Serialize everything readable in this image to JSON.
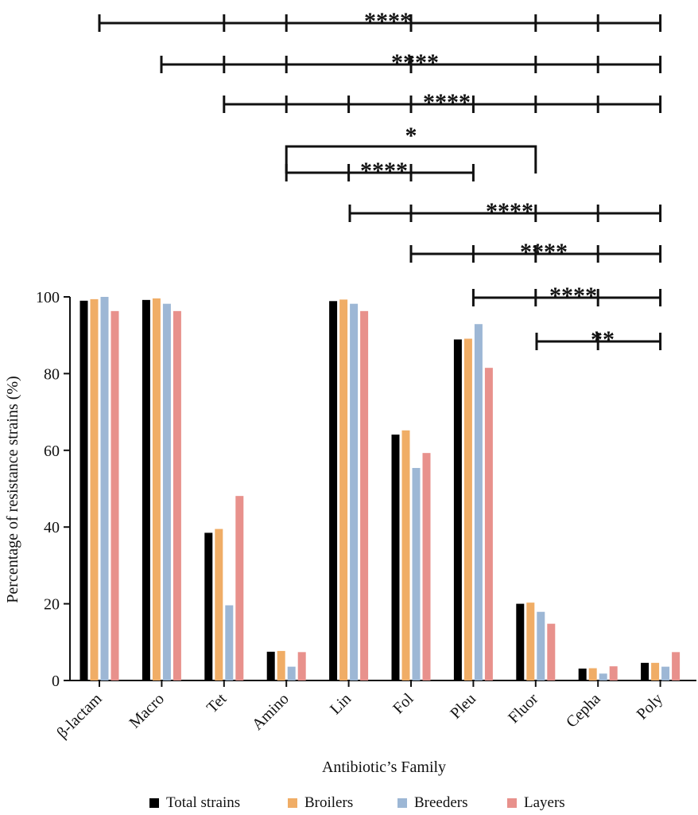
{
  "chart_data": {
    "type": "bar",
    "title": "",
    "xlabel": "Antibiotic’s Family",
    "ylabel": "Percentage of resistance strains (%)",
    "ylim": [
      0,
      100
    ],
    "yticks": [
      0,
      20,
      40,
      60,
      80,
      100
    ],
    "categories": [
      "β-lactam",
      "Macro",
      "Tet",
      "Amino",
      "Lin",
      "Fol",
      "Pleu",
      "Fluor",
      "Cepha",
      "Poly"
    ],
    "series": [
      {
        "name": "Total strains",
        "color": "#000000",
        "values": [
          99,
          99.2,
          38.5,
          7.5,
          98.9,
          64.1,
          88.9,
          20.0,
          3.1,
          4.6
        ]
      },
      {
        "name": "Broilers",
        "color": "#F0AD66",
        "values": [
          99.4,
          99.6,
          39.5,
          7.7,
          99.3,
          65.2,
          89.1,
          20.3,
          3.2,
          4.6
        ]
      },
      {
        "name": "Breeders",
        "color": "#9DB7D5",
        "values": [
          100,
          98.2,
          19.6,
          3.6,
          98.2,
          55.4,
          92.9,
          17.9,
          1.8,
          3.6
        ]
      },
      {
        "name": "Layers",
        "color": "#E8918C",
        "values": [
          96.3,
          96.3,
          48.1,
          7.4,
          96.3,
          59.3,
          81.5,
          14.8,
          3.7,
          7.4
        ]
      }
    ],
    "legend_position": "bottom",
    "significance": [
      {
        "label": "****",
        "style": "line",
        "ticks": [
          0,
          2,
          3,
          5,
          7,
          8,
          9
        ]
      },
      {
        "label": "****",
        "style": "line",
        "ticks": [
          1,
          2,
          3,
          5,
          7,
          8,
          9
        ]
      },
      {
        "label": "****",
        "style": "line",
        "ticks": [
          2,
          3,
          4,
          5,
          6,
          7,
          8,
          9
        ]
      },
      {
        "label": "*",
        "style": "bracket",
        "ticks": [
          3,
          7
        ]
      },
      {
        "label": "****",
        "style": "line",
        "ticks": [
          3,
          4,
          5,
          6
        ]
      },
      {
        "label": "****",
        "style": "line",
        "ticks": [
          4,
          5,
          7,
          8,
          9
        ]
      },
      {
        "label": "****",
        "style": "line",
        "ticks": [
          5,
          6,
          7,
          8,
          9
        ]
      },
      {
        "label": "****",
        "style": "line",
        "ticks": [
          6,
          7,
          8,
          9
        ]
      },
      {
        "label": "**",
        "style": "line",
        "ticks": [
          7,
          8,
          9
        ]
      }
    ]
  }
}
